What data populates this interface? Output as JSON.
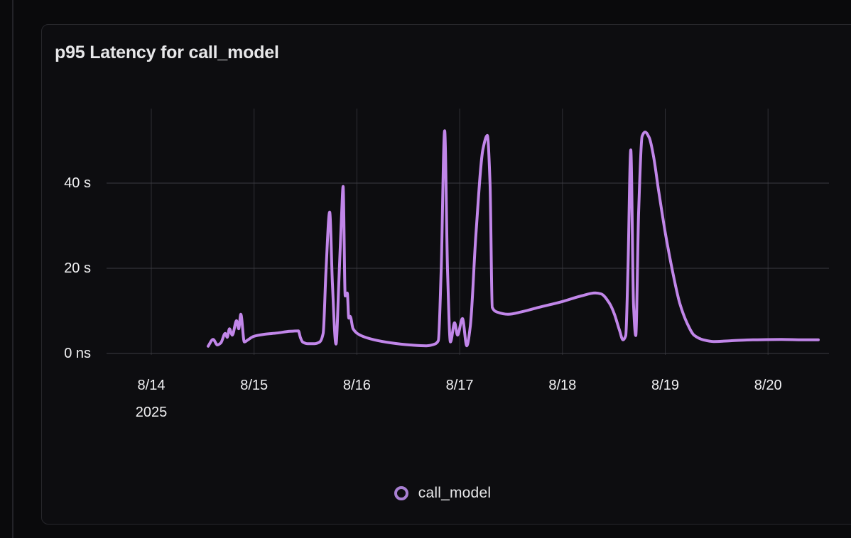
{
  "card": {
    "title": "p95 Latency for call_model"
  },
  "legend": {
    "items": [
      {
        "label": "call_model",
        "marker": "ring-icon",
        "color": "#a87fd2"
      }
    ],
    "position": "bottom-center"
  },
  "colors": {
    "page_background": "#0a0a0c",
    "card_background": "#0d0d10",
    "card_border": "#27272c",
    "title_text": "#e7e7e9",
    "tick_text": "#f1f1f3",
    "grid_horizontal": "#3c3c42",
    "grid_vertical": "#2f2f35",
    "series_line": "#c186e9",
    "legend_ring": "#a87fd2"
  },
  "chart_data": {
    "type": "line",
    "title": "p95 Latency for call_model",
    "xlabel": "",
    "ylabel": "",
    "x_unit": "days since 8/14/2025 00:00",
    "y_unit": "seconds",
    "xlim": [
      -0.47,
      6.59
    ],
    "ylim": [
      0,
      57.5
    ],
    "grid": true,
    "legend_position": "bottom",
    "x_ticks": [
      {
        "label": "8/14",
        "sublabel": "2025",
        "day": 0
      },
      {
        "label": "8/15",
        "sublabel": "",
        "day": 1
      },
      {
        "label": "8/16",
        "sublabel": "",
        "day": 2
      },
      {
        "label": "8/17",
        "sublabel": "",
        "day": 3
      },
      {
        "label": "8/18",
        "sublabel": "",
        "day": 4
      },
      {
        "label": "8/19",
        "sublabel": "",
        "day": 5
      },
      {
        "label": "8/20",
        "sublabel": "",
        "day": 6
      }
    ],
    "y_ticks": [
      {
        "label": "0 ns",
        "value": 0
      },
      {
        "label": "20 s",
        "value": 20
      },
      {
        "label": "40 s",
        "value": 40
      }
    ],
    "series": [
      {
        "name": "call_model",
        "color": "#c186e9",
        "points": [
          [
            0.553,
            1.7
          ],
          [
            0.601,
            3.3
          ],
          [
            0.643,
            2.0
          ],
          [
            0.677,
            2.5
          ],
          [
            0.719,
            4.7
          ],
          [
            0.739,
            3.8
          ],
          [
            0.76,
            5.8
          ],
          [
            0.788,
            4.3
          ],
          [
            0.829,
            7.7
          ],
          [
            0.85,
            5.8
          ],
          [
            0.871,
            9.2
          ],
          [
            0.905,
            2.7
          ],
          [
            0.94,
            3.2
          ],
          [
            0.995,
            4.0
          ],
          [
            1.099,
            4.5
          ],
          [
            1.223,
            4.8
          ],
          [
            1.348,
            5.2
          ],
          [
            1.431,
            5.3
          ],
          [
            1.451,
            3.7
          ],
          [
            1.472,
            2.7
          ],
          [
            1.52,
            2.3
          ],
          [
            1.589,
            2.3
          ],
          [
            1.638,
            2.7
          ],
          [
            1.672,
            4.7
          ],
          [
            1.7,
            19.7
          ],
          [
            1.735,
            33.2
          ],
          [
            1.762,
            16.3
          ],
          [
            1.797,
            2.2
          ],
          [
            1.824,
            16.3
          ],
          [
            1.852,
            33.0
          ],
          [
            1.866,
            39.2
          ],
          [
            1.887,
            13.5
          ],
          [
            1.907,
            14.2
          ],
          [
            1.921,
            8.3
          ],
          [
            1.935,
            8.7
          ],
          [
            1.963,
            5.8
          ],
          [
            2.032,
            4.3
          ],
          [
            2.17,
            3.2
          ],
          [
            2.329,
            2.5
          ],
          [
            2.516,
            2.0
          ],
          [
            2.675,
            1.8
          ],
          [
            2.758,
            2.2
          ],
          [
            2.792,
            3.0
          ],
          [
            2.82,
            19.7
          ],
          [
            2.854,
            52.3
          ],
          [
            2.882,
            19.7
          ],
          [
            2.91,
            2.7
          ],
          [
            2.951,
            7.2
          ],
          [
            2.979,
            4.3
          ],
          [
            3.027,
            8.2
          ],
          [
            3.069,
            1.8
          ],
          [
            3.103,
            6.3
          ],
          [
            3.158,
            28.0
          ],
          [
            3.227,
            48.0
          ],
          [
            3.269,
            51.2
          ],
          [
            3.296,
            39.7
          ],
          [
            3.317,
            10.8
          ],
          [
            3.366,
            9.7
          ],
          [
            3.469,
            9.2
          ],
          [
            3.607,
            9.8
          ],
          [
            3.766,
            10.8
          ],
          [
            4.001,
            12.2
          ],
          [
            4.181,
            13.5
          ],
          [
            4.319,
            14.2
          ],
          [
            4.374,
            14.0
          ],
          [
            4.457,
            11.8
          ],
          [
            4.506,
            9.2
          ],
          [
            4.554,
            5.5
          ],
          [
            4.589,
            3.2
          ],
          [
            4.616,
            4.2
          ],
          [
            4.637,
            19.7
          ],
          [
            4.665,
            47.8
          ],
          [
            4.692,
            11.3
          ],
          [
            4.713,
            4.2
          ],
          [
            4.741,
            33.0
          ],
          [
            4.775,
            51.0
          ],
          [
            4.803,
            52.0
          ],
          [
            4.844,
            50.7
          ],
          [
            4.886,
            46.3
          ],
          [
            4.934,
            38.5
          ],
          [
            5.003,
            28.0
          ],
          [
            5.072,
            19.2
          ],
          [
            5.141,
            11.8
          ],
          [
            5.211,
            7.2
          ],
          [
            5.28,
            4.3
          ],
          [
            5.37,
            3.2
          ],
          [
            5.473,
            2.8
          ],
          [
            5.646,
            3.0
          ],
          [
            5.854,
            3.2
          ],
          [
            6.13,
            3.3
          ],
          [
            6.337,
            3.2
          ],
          [
            6.489,
            3.2
          ]
        ]
      }
    ]
  }
}
